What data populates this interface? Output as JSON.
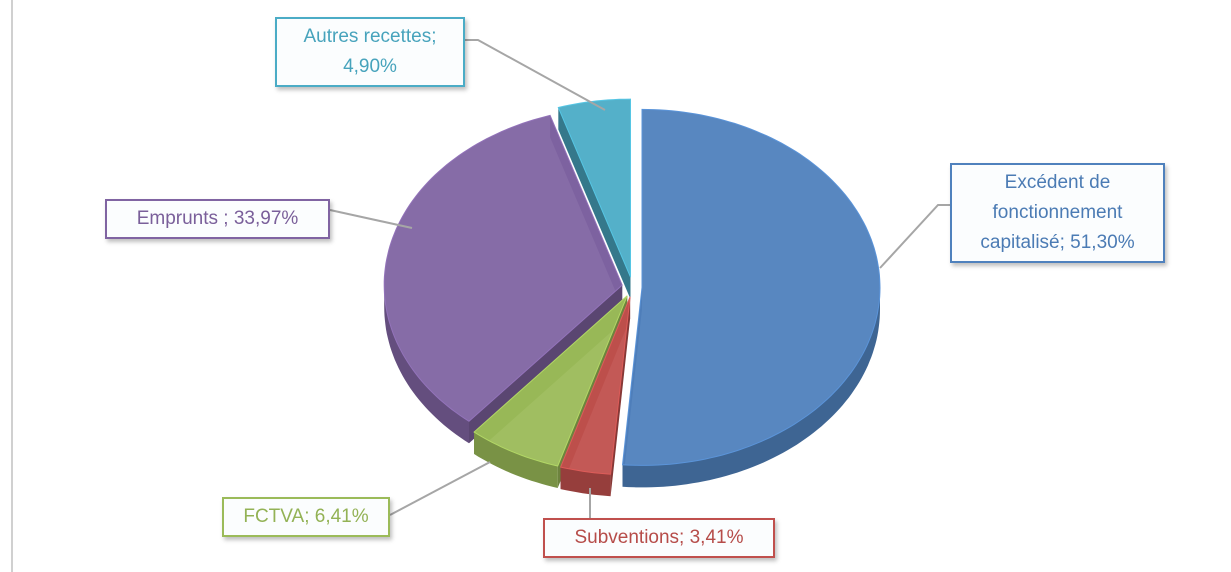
{
  "chart_data": {
    "type": "pie",
    "value_labels": [
      "Excédent de fonctionnement capitalisé; 51,30%",
      "Subventions; 3,41%",
      "FCTVA; 6,41%",
      "Emprunts ; 33,97%",
      "Autres recettes; 4,90%"
    ],
    "values": [
      51.3,
      3.41,
      6.41,
      33.97,
      4.9
    ],
    "colors": [
      "#4f81bd",
      "#c0504d",
      "#9bbb59",
      "#8064a2",
      "#4bacc6"
    ]
  }
}
